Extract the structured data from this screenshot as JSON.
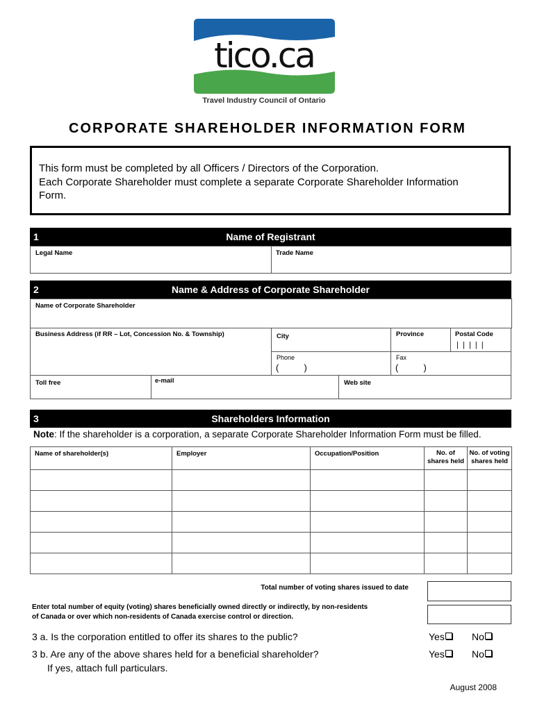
{
  "logo": {
    "text": "tico.ca",
    "tagline": "Travel Industry Council of Ontario",
    "colors": {
      "blue": "#1a63a8",
      "green": "#4aa64a"
    }
  },
  "title": "CORPORATE SHAREHOLDER INFORMATION FORM",
  "intro": [
    "This form must be completed by all Officers / Directors of the Corporation.",
    "Each Corporate Shareholder must complete a separate Corporate Shareholder Information",
    "Form."
  ],
  "section1": {
    "number": "1",
    "title": "Name of Registrant",
    "legal_name": "Legal Name",
    "trade_name": "Trade Name"
  },
  "section2": {
    "number": "2",
    "title": "Name & Address of Corporate Shareholder",
    "name": "Name of Corporate Shareholder",
    "address": "Business Address (if RR – Lot, Concession No. & Township)",
    "city": "City",
    "province": "Province",
    "postal_code": "Postal Code",
    "postal_ticks": "|  |  |  |  |",
    "phone": "Phone",
    "fax": "Fax",
    "paren": "(          )",
    "toll_free": "Toll free",
    "email": "e-mail",
    "website": "Web site"
  },
  "section3": {
    "number": "3",
    "title": "Shareholders Information",
    "note_label": "Note",
    "note": ": If the shareholder is a corporation, a separate Corporate Shareholder Information Form must be filled.",
    "columns": [
      "Name of shareholder(s)",
      "Employer",
      "Occupation/Position",
      "No. of shares held",
      "No. of voting shares held"
    ],
    "total_voting": "Total number of voting shares issued to date",
    "non_residents": [
      "Enter total number of equity (voting) shares beneficially owned directly or indirectly, by non-residents",
      "of Canada or over which non-residents of Canada exercise control or direction."
    ],
    "q3a": "3 a. Is the corporation entitled to offer its shares to the public?",
    "q3b": "3 b. Are any of the above shares held for a beneficial shareholder?",
    "q3b_note": "If yes, attach full particulars.",
    "yes": "Yes",
    "no": "No"
  },
  "footer": "August 2008"
}
